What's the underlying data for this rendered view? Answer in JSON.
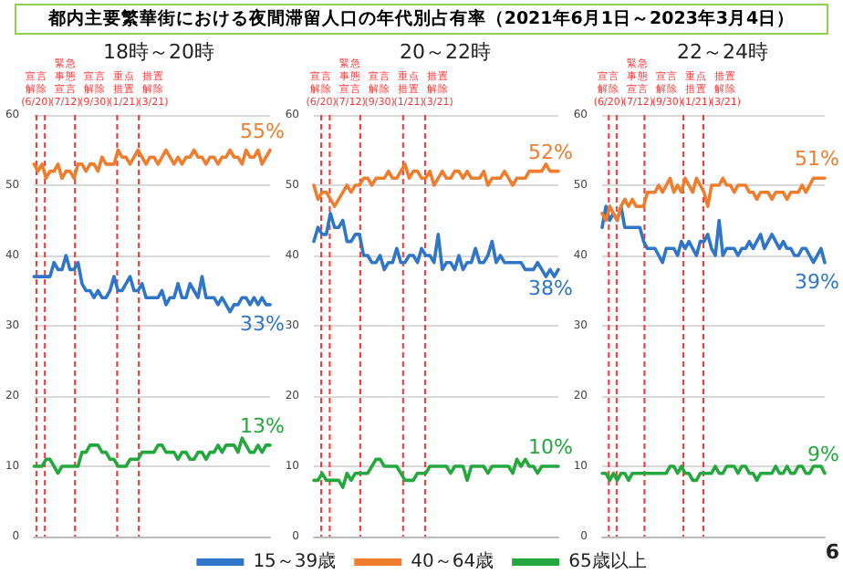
{
  "chart_data": [
    {
      "type": "line",
      "title": "都内主要繁華街における夜間滞留人口の年代別占有率（2021年6月1日～2023年3月4日）",
      "subtitle": "18時～20時",
      "categories": [
        null,
        null,
        null,
        null,
        null,
        null,
        null,
        null,
        null,
        null,
        null,
        null,
        null,
        null,
        null,
        null,
        null,
        null,
        null,
        null,
        null,
        null,
        null,
        null,
        null,
        null,
        null,
        null,
        null,
        null,
        null,
        null,
        null,
        null,
        null,
        null,
        null,
        null,
        null,
        null,
        null,
        null,
        null,
        null,
        null,
        null,
        null,
        null,
        null,
        null,
        null,
        null,
        null,
        null,
        null,
        null,
        null,
        null,
        null,
        null
      ],
      "ylim": [
        0,
        60
      ],
      "yticks": [
        0,
        10,
        20,
        30,
        40,
        50,
        60
      ],
      "tick_labels": "y",
      "grid": "y",
      "legend": false,
      "line_style": "solid",
      "series": [
        {
          "color": "#2f75c8",
          "values": [
            37,
            37,
            37,
            37,
            37,
            39,
            38,
            38,
            40,
            38,
            38,
            39,
            36,
            35,
            35,
            34,
            35,
            34,
            34,
            35,
            37,
            35,
            35,
            36,
            37,
            35,
            35,
            36,
            34,
            34,
            34,
            34,
            35,
            33,
            34,
            34,
            36,
            34,
            34,
            36,
            35,
            34,
            37,
            34,
            34,
            34,
            33,
            34,
            33,
            32,
            33,
            33,
            34,
            34,
            33,
            34,
            33,
            34,
            33,
            33
          ]
        },
        {
          "color": "#ee7d2e",
          "values": [
            53,
            52,
            53,
            51,
            52,
            52,
            53,
            51,
            52,
            52,
            51,
            53,
            53,
            52,
            53,
            53,
            52,
            54,
            53,
            53,
            53,
            55,
            54,
            54,
            53,
            54,
            55,
            54,
            53,
            54,
            54,
            53,
            54,
            55,
            54,
            53,
            54,
            53,
            54,
            54,
            55,
            54,
            54,
            53,
            54,
            54,
            53,
            54,
            54,
            55,
            54,
            54,
            53,
            55,
            54,
            54,
            55,
            53,
            54,
            55
          ]
        },
        {
          "color": "#22a83c",
          "values": [
            10,
            10,
            10,
            11,
            11,
            10,
            9,
            10,
            10,
            10,
            10,
            10,
            12,
            12,
            13,
            13,
            13,
            12,
            12,
            11,
            11,
            10,
            10,
            10,
            11,
            11,
            11,
            12,
            12,
            12,
            12,
            13,
            13,
            12,
            12,
            12,
            11,
            12,
            12,
            11,
            11,
            12,
            12,
            11,
            12,
            12,
            13,
            12,
            13,
            13,
            13,
            12,
            14,
            13,
            12,
            12,
            13,
            12,
            13,
            13
          ]
        }
      ],
      "annotations": [
        "宣言解除(6/20)",
        "緊急事態宣言(7/12)",
        "宣言解除(9/30)",
        "重点措置(1/21)",
        "措置解除(3/21)",
        {
          "text": "33%",
          "y": 33
        },
        {
          "text": "55%",
          "y": 55
        },
        {
          "text": "13%",
          "y": 13
        }
      ]
    },
    {
      "type": "line",
      "subtitle": "20～22時",
      "categories": [
        null,
        null,
        null,
        null,
        null,
        null,
        null,
        null,
        null,
        null,
        null,
        null,
        null,
        null,
        null,
        null,
        null,
        null,
        null,
        null,
        null,
        null,
        null,
        null,
        null,
        null,
        null,
        null,
        null,
        null,
        null,
        null,
        null,
        null,
        null,
        null,
        null,
        null,
        null,
        null,
        null,
        null,
        null,
        null,
        null,
        null,
        null,
        null,
        null,
        null,
        null,
        null,
        null,
        null,
        null,
        null,
        null,
        null,
        null,
        null
      ],
      "ylim": [
        0,
        60
      ],
      "yticks": [
        0,
        10,
        20,
        30,
        40,
        50,
        60
      ],
      "tick_labels": "y",
      "grid": "y",
      "legend": "bottom",
      "line_style": "solid",
      "series": [
        {
          "name": "15～39歳",
          "color": "#2f75c8",
          "values": [
            42,
            44,
            43,
            43,
            46,
            44,
            44,
            45,
            42,
            42,
            43,
            43,
            40,
            40,
            39,
            39,
            40,
            38,
            39,
            39,
            41,
            39,
            39,
            40,
            40,
            39,
            41,
            40,
            40,
            39,
            43,
            38,
            39,
            39,
            38,
            40,
            38,
            39,
            39,
            41,
            39,
            39,
            40,
            42,
            39,
            40,
            39,
            39,
            39,
            39,
            39,
            38,
            38,
            38,
            39,
            38,
            37,
            38,
            37,
            38
          ]
        },
        {
          "name": "40～64歳",
          "color": "#ee7d2e",
          "values": [
            50,
            48,
            49,
            49,
            48,
            47,
            48,
            49,
            50,
            49,
            50,
            50,
            51,
            51,
            50,
            51,
            51,
            51,
            52,
            51,
            51,
            52,
            53,
            51,
            52,
            52,
            51,
            51,
            52,
            50,
            51,
            52,
            51,
            51,
            52,
            52,
            51,
            52,
            51,
            51,
            51,
            52,
            50,
            51,
            51,
            51,
            52,
            51,
            50,
            51,
            51,
            51,
            52,
            52,
            52,
            52,
            53,
            52,
            52,
            52
          ]
        },
        {
          "name": "65歳以上",
          "color": "#22a83c",
          "values": [
            8,
            8,
            9,
            8,
            8,
            8,
            8,
            7,
            9,
            8,
            9,
            9,
            9,
            9,
            10,
            11,
            11,
            10,
            10,
            10,
            10,
            9,
            8,
            8,
            8,
            9,
            9,
            9,
            10,
            10,
            10,
            10,
            10,
            9,
            10,
            10,
            10,
            8,
            10,
            10,
            10,
            10,
            9,
            10,
            10,
            10,
            10,
            10,
            9,
            11,
            10,
            11,
            10,
            10,
            9,
            10,
            10,
            10,
            10,
            10
          ]
        }
      ],
      "annotations": [
        "宣言解除(6/20)",
        "緊急事態宣言(7/12)",
        "宣言解除(9/30)",
        "重点措置(1/21)",
        "措置解除(3/21)",
        {
          "text": "38%",
          "y": 38
        },
        {
          "text": "52%",
          "y": 52
        },
        {
          "text": "10%",
          "y": 10
        }
      ]
    },
    {
      "type": "line",
      "subtitle": "22～24時",
      "categories": [
        null,
        null,
        null,
        null,
        null,
        null,
        null,
        null,
        null,
        null,
        null,
        null,
        null,
        null,
        null,
        null,
        null,
        null,
        null,
        null,
        null,
        null,
        null,
        null,
        null,
        null,
        null,
        null,
        null,
        null,
        null,
        null,
        null,
        null,
        null,
        null,
        null,
        null,
        null,
        null,
        null,
        null,
        null,
        null,
        null,
        null,
        null,
        null,
        null,
        null,
        null,
        null,
        null,
        null,
        null,
        null,
        null,
        null,
        null,
        null
      ],
      "ylim": [
        0,
        60
      ],
      "yticks": [
        0,
        10,
        20,
        30,
        40,
        50,
        60
      ],
      "tick_labels": "y",
      "grid": "y",
      "legend": false,
      "line_style": "solid",
      "series": [
        {
          "color": "#2f75c8",
          "values": [
            44,
            47,
            45,
            46,
            45,
            47,
            44,
            44,
            44,
            44,
            44,
            42,
            41,
            41,
            41,
            40,
            39,
            41,
            41,
            41,
            40,
            42,
            41,
            42,
            41,
            40,
            42,
            42,
            43,
            41,
            40,
            45,
            40,
            41,
            41,
            41,
            40,
            41,
            41,
            42,
            41,
            42,
            43,
            41,
            42,
            43,
            42,
            41,
            42,
            41,
            41,
            40,
            40,
            41,
            41,
            40,
            39,
            40,
            41,
            39
          ]
        },
        {
          "color": "#ee7d2e",
          "values": [
            46,
            45,
            47,
            46,
            45,
            47,
            48,
            47,
            48,
            47,
            47,
            47,
            49,
            49,
            49,
            50,
            49,
            50,
            51,
            49,
            50,
            49,
            51,
            50,
            49,
            51,
            50,
            49,
            47,
            50,
            50,
            50,
            51,
            50,
            50,
            49,
            50,
            50,
            50,
            49,
            49,
            48,
            49,
            49,
            49,
            48,
            49,
            49,
            49,
            48,
            49,
            49,
            49,
            50,
            49,
            50,
            51,
            51,
            51,
            51
          ]
        },
        {
          "color": "#22a83c",
          "values": [
            9,
            9,
            8,
            9,
            8,
            9,
            9,
            8,
            9,
            9,
            9,
            9,
            9,
            9,
            9,
            9,
            9,
            9,
            10,
            10,
            9,
            10,
            9,
            9,
            8,
            8,
            9,
            9,
            9,
            9,
            10,
            9,
            9,
            10,
            10,
            10,
            9,
            10,
            10,
            9,
            9,
            8,
            9,
            9,
            9,
            9,
            10,
            9,
            9,
            10,
            9,
            9,
            10,
            10,
            9,
            9,
            10,
            10,
            10,
            9
          ]
        }
      ],
      "annotations": [
        "宣言解除(6/20)",
        "緊急事態宣言(7/12)",
        "宣言解除(9/30)",
        "重点措置(1/21)",
        "措置解除(3/21)",
        {
          "text": "39%",
          "y": 39
        },
        {
          "text": "51%",
          "y": 51
        },
        {
          "text": "9%",
          "y": 9
        },
        "6"
      ]
    }
  ]
}
